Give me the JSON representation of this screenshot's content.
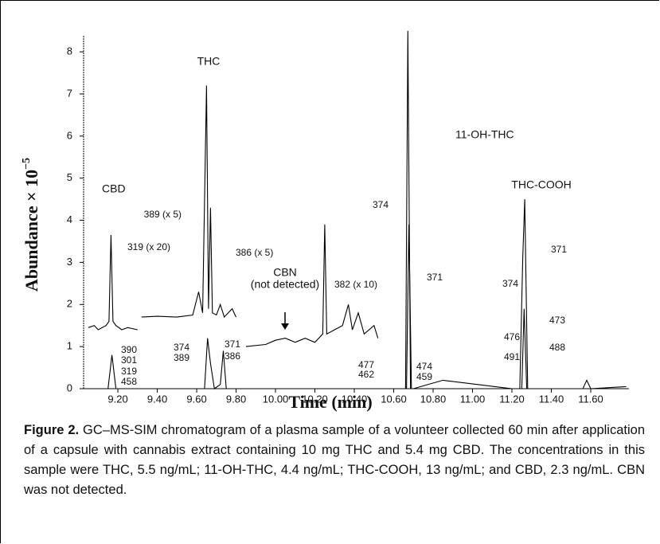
{
  "chart_data": {
    "type": "line",
    "x_label": "Time (min)",
    "y_label": "Abundance × 10",
    "y_label_exponent": "−5",
    "xlim": [
      9.026,
      11.794
    ],
    "ylim": [
      0,
      8.38
    ],
    "xticks": [
      {
        "value": 9.2,
        "label": "9.20"
      },
      {
        "value": 9.4,
        "label": "9.40"
      },
      {
        "value": 9.6,
        "label": "9.60"
      },
      {
        "value": 9.8,
        "label": "9.80"
      },
      {
        "value": 10.0,
        "label": "10.00"
      },
      {
        "value": 10.2,
        "label": "10.20"
      },
      {
        "value": 10.4,
        "label": "10.40"
      },
      {
        "value": 10.6,
        "label": "10.60"
      },
      {
        "value": 10.8,
        "label": "10.80"
      },
      {
        "value": 11.0,
        "label": "11.00"
      },
      {
        "value": 11.2,
        "label": "11.20"
      },
      {
        "value": 11.4,
        "label": "11.40"
      },
      {
        "value": 11.6,
        "label": "11.60"
      }
    ],
    "yticks": [
      0,
      1,
      2,
      3,
      4,
      5,
      6,
      7,
      8
    ],
    "series": [
      {
        "color": "#000000",
        "x": [
          9.07,
          9.15,
          9.17,
          9.19,
          9.22,
          9.6,
          9.64,
          9.655,
          9.67,
          9.69,
          9.72,
          9.735,
          9.75,
          10.0,
          10.64,
          10.66,
          10.672,
          10.685,
          10.7,
          10.85,
          11.2,
          11.24,
          11.255,
          11.265,
          11.28,
          11.3,
          11.56,
          11.58,
          11.6,
          11.78
        ],
        "values": [
          0,
          0,
          0.8,
          0,
          0,
          0,
          0,
          1.2,
          0.6,
          0,
          0.1,
          0.9,
          0,
          0,
          0,
          0,
          8.5,
          0,
          0,
          0.2,
          0,
          0,
          3.1,
          4.5,
          0,
          0,
          0,
          0.2,
          0,
          0.05
        ]
      },
      {
        "color": "#000000",
        "x": [
          10.64,
          10.665,
          10.677,
          10.69,
          10.72,
          11.22,
          11.25,
          11.262,
          11.275,
          11.3
        ],
        "values": [
          0,
          0,
          3.9,
          0,
          0,
          0,
          0,
          1.9,
          0,
          0
        ]
      },
      {
        "color": "#000000",
        "x": [
          9.05,
          9.08,
          9.1,
          9.14,
          9.155,
          9.165,
          9.175,
          9.19,
          9.22,
          9.25,
          9.3
        ],
        "values": [
          1.45,
          1.5,
          1.4,
          1.5,
          1.6,
          3.65,
          1.6,
          1.5,
          1.4,
          1.45,
          1.4
        ]
      },
      {
        "color": "#000000",
        "x": [
          9.32,
          9.4,
          9.5,
          9.58,
          9.61,
          9.63,
          9.65,
          9.66,
          9.67,
          9.68,
          9.7,
          9.72,
          9.74,
          9.78,
          9.8
        ],
        "values": [
          1.7,
          1.72,
          1.7,
          1.75,
          2.3,
          1.8,
          7.2,
          1.9,
          4.3,
          1.8,
          1.75,
          2.0,
          1.7,
          1.9,
          1.7
        ]
      },
      {
        "color": "#000000",
        "x": [
          9.85,
          9.95,
          10.0,
          10.05,
          10.1,
          10.15,
          10.2,
          10.24,
          10.25,
          10.26,
          10.3,
          10.34,
          10.37,
          10.39,
          10.42,
          10.45,
          10.5,
          10.52
        ],
        "values": [
          1.0,
          1.05,
          1.15,
          1.2,
          1.1,
          1.2,
          1.1,
          1.3,
          3.9,
          1.3,
          1.4,
          1.5,
          2.0,
          1.4,
          1.8,
          1.3,
          1.5,
          1.2
        ]
      }
    ],
    "annotations": [
      "THC",
      "CBD",
      "11-OH-THC",
      "THC-COOH",
      "CBN",
      "(not detected)",
      "389 (x 5)",
      "386 (x 5)",
      "319 (x 20)",
      "382 (x 10)",
      "390",
      "301",
      "319",
      "458",
      "374",
      "389",
      "371",
      "386",
      "477",
      "462",
      "474",
      "459",
      "374",
      "371",
      "374",
      "371",
      "476",
      "491",
      "473",
      "488"
    ]
  },
  "caption_label": "Figure 2.",
  "caption": "GC–MS-SIM chromatogram of a plasma sample of a volunteer collected 60 min after application of a capsule with cannabis extract containing 10 mg THC and 5.4 mg CBD. The concentrations in this sample were THC, 5.5 ng/mL; 11-OH-THC, 4.4 ng/mL; THC-COOH, 13 ng/mL; and CBD, 2.3 ng/mL. CBN was not detected."
}
